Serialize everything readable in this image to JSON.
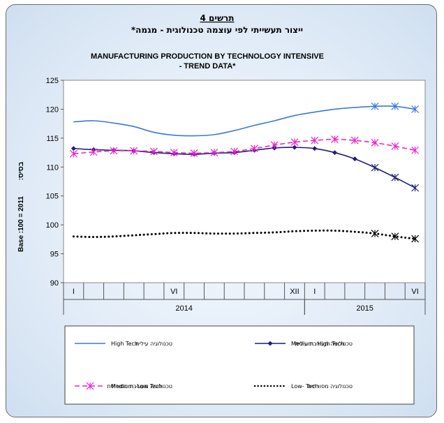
{
  "chart_data": {
    "type": "line",
    "figure_label": "תרשים 4",
    "title_he": "ייצור תעשייתי לפי עוצמה טכנולוגית - מגמה*",
    "title_en_line1": "MANUFACTURING PRODUCTION BY TECHNOLOGY INTENSIVE",
    "title_en_line2": "- TREND DATA*",
    "ylabel_en": "Base  :100 = 2011",
    "ylabel_he": "בסיס:",
    "ylim": [
      90,
      125
    ],
    "yticks": [
      90,
      95,
      100,
      105,
      110,
      115,
      120,
      125
    ],
    "x_month_labels": [
      "I",
      "",
      "",
      "",
      "",
      "VI",
      "",
      "",
      "",
      "",
      "",
      "XII",
      "I",
      "",
      "",
      "",
      "",
      "VI"
    ],
    "year_labels": [
      {
        "label": "2014",
        "start": 0,
        "end": 11
      },
      {
        "label": "2015",
        "start": 12,
        "end": 17
      }
    ],
    "legend_position": "bottom",
    "series": [
      {
        "name_he": "טכנולוגיה עילית",
        "name_en": "High Tech",
        "color": "#3c78d8",
        "style": "solid",
        "values": [
          117.8,
          118.0,
          117.6,
          117.0,
          116.0,
          115.5,
          115.4,
          115.6,
          116.3,
          117.2,
          118.0,
          118.9,
          119.5,
          120.0,
          120.3,
          120.5,
          120.5,
          120.0
        ],
        "star_from": 15
      },
      {
        "name_he": "טכנולוגיה מעורבת עילית",
        "name_en": "Medium -High Tech",
        "color": "#1f1f7a",
        "style": "diamond",
        "values": [
          113.2,
          113.0,
          112.9,
          112.8,
          112.5,
          112.3,
          112.2,
          112.4,
          112.5,
          112.9,
          113.3,
          113.4,
          113.2,
          112.5,
          111.4,
          109.9,
          108.2,
          106.4
        ],
        "star_from": 15
      },
      {
        "name_he": "טכנולוגיה מעורבת מסורתית",
        "name_en": "Medium -Low Tech",
        "color": "#ee22cc",
        "style": "dashed",
        "values": [
          112.3,
          112.6,
          112.8,
          112.8,
          112.7,
          112.5,
          112.4,
          112.5,
          112.7,
          113.2,
          113.8,
          114.3,
          114.6,
          114.8,
          114.6,
          114.2,
          113.6,
          112.9
        ],
        "star_from": 15
      },
      {
        "name_he": "טכנולוגיה מסורתית",
        "name_en": "Low- Tech",
        "color": "#000000",
        "style": "dotted",
        "values": [
          98.0,
          97.9,
          98.0,
          98.2,
          98.4,
          98.6,
          98.6,
          98.5,
          98.5,
          98.6,
          98.7,
          98.9,
          99.0,
          99.0,
          98.8,
          98.5,
          98.0,
          97.6
        ],
        "star_from": 15
      }
    ]
  }
}
